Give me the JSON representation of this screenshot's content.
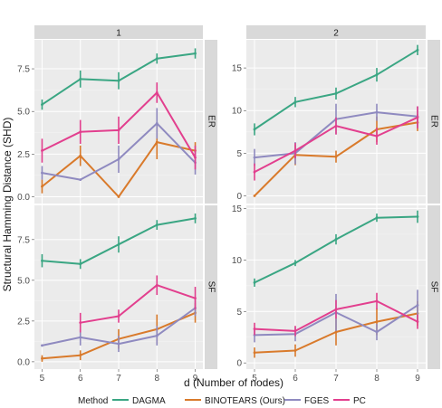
{
  "chart_data": {
    "type": "line",
    "xlabel": "d (Number of nodes)",
    "ylabel": "Structural Hamming Distance (SHD)",
    "x": [
      5,
      6,
      7,
      8,
      9
    ],
    "columns": [
      "1",
      "2"
    ],
    "rows": [
      "ER",
      "SF"
    ],
    "grid": true,
    "legend": {
      "position": "bottom",
      "title": "Method",
      "entries": [
        "DAGMA",
        "BINOTEARS (Ours)",
        "FGES",
        "PC"
      ]
    },
    "colors": {
      "DAGMA": "#3aa683",
      "BINOTEARS (Ours)": "#d97a2b",
      "FGES": "#8f8ac0",
      "PC": "#e23f8e"
    },
    "panels": [
      {
        "col": "1",
        "row": "ER",
        "ylim": [
          -0.4,
          9.2
        ],
        "yticks": [
          0.0,
          2.5,
          5.0,
          7.5
        ],
        "tick_labels": [
          "0.0",
          "2.5",
          "5.0",
          "7.5"
        ],
        "series": [
          {
            "name": "DAGMA",
            "values": [
              5.4,
              6.9,
              6.8,
              8.1,
              8.4
            ],
            "err": [
              0.3,
              0.5,
              0.5,
              0.3,
              0.3
            ]
          },
          {
            "name": "BINOTEARS (Ours)",
            "values": [
              0.6,
              2.4,
              0.0,
              3.2,
              2.7
            ],
            "err": [
              0.4,
              0.6,
              0.0,
              1.0,
              0.5
            ]
          },
          {
            "name": "FGES",
            "values": [
              1.4,
              1.0,
              2.2,
              4.3,
              2.0
            ],
            "err": [
              0.4,
              0.0,
              0.8,
              0.9,
              0.7
            ]
          },
          {
            "name": "PC",
            "values": [
              2.7,
              3.8,
              3.9,
              6.1,
              2.3
            ],
            "err": [
              0.7,
              0.7,
              0.8,
              0.6,
              0.7
            ]
          }
        ]
      },
      {
        "col": "2",
        "row": "ER",
        "ylim": [
          -0.9,
          18.3
        ],
        "yticks": [
          0,
          5,
          10,
          15
        ],
        "tick_labels": [
          "0",
          "5",
          "10",
          "15"
        ],
        "series": [
          {
            "name": "DAGMA",
            "values": [
              7.8,
              11.0,
              12.0,
              14.2,
              17.1
            ],
            "err": [
              0.7,
              0.6,
              0.7,
              0.8,
              0.6
            ]
          },
          {
            "name": "BINOTEARS (Ours)",
            "values": [
              0.0,
              4.8,
              4.6,
              7.8,
              8.6
            ],
            "err": [
              0.0,
              1.2,
              0.7,
              1.5,
              1.0
            ]
          },
          {
            "name": "FGES",
            "values": [
              4.5,
              5.0,
              9.0,
              9.8,
              9.3
            ],
            "err": [
              1.0,
              1.3,
              1.8,
              1.0,
              1.2
            ]
          },
          {
            "name": "PC",
            "values": [
              2.8,
              5.3,
              8.2,
              7.0,
              9.2
            ],
            "err": [
              1.0,
              0.9,
              1.0,
              1.0,
              1.3
            ]
          }
        ]
      },
      {
        "col": "1",
        "row": "SF",
        "ylim": [
          -0.45,
          9.6
        ],
        "yticks": [
          0.0,
          2.5,
          5.0,
          7.5
        ],
        "tick_labels": [
          "0.0",
          "2.5",
          "5.0",
          "7.5"
        ],
        "series": [
          {
            "name": "DAGMA",
            "values": [
              6.2,
              6.0,
              7.2,
              8.4,
              8.8
            ],
            "err": [
              0.4,
              0.3,
              0.5,
              0.3,
              0.3
            ]
          },
          {
            "name": "BINOTEARS (Ours)",
            "values": [
              0.2,
              0.4,
              1.4,
              2.0,
              3.0
            ],
            "err": [
              0.2,
              0.3,
              0.6,
              0.9,
              0.6
            ]
          },
          {
            "name": "FGES",
            "values": [
              1.0,
              1.5,
              1.1,
              1.6,
              3.3
            ],
            "err": [
              0.0,
              0.5,
              0.5,
              0.6,
              0.5
            ]
          },
          {
            "name": "PC",
            "values": [
              null,
              2.4,
              2.8,
              4.7,
              3.9
            ],
            "err": [
              0,
              0.6,
              0.4,
              0.6,
              0.7
            ]
          }
        ]
      },
      {
        "col": "2",
        "row": "SF",
        "ylim": [
          -0.6,
          15.3
        ],
        "yticks": [
          0,
          5,
          10,
          15
        ],
        "tick_labels": [
          "0",
          "5",
          "10",
          "15"
        ],
        "series": [
          {
            "name": "DAGMA",
            "values": [
              7.8,
              9.7,
              12.0,
              14.1,
              14.2
            ],
            "err": [
              0.4,
              0.3,
              0.5,
              0.4,
              0.6
            ]
          },
          {
            "name": "BINOTEARS (Ours)",
            "values": [
              1.0,
              1.2,
              3.0,
              4.0,
              4.8
            ],
            "err": [
              0.5,
              0.6,
              1.3,
              1.3,
              1.2
            ]
          },
          {
            "name": "FGES",
            "values": [
              2.7,
              2.8,
              4.9,
              3.0,
              5.6
            ],
            "err": [
              0.7,
              0.7,
              1.8,
              0.8,
              1.5
            ]
          },
          {
            "name": "PC",
            "values": [
              3.3,
              3.1,
              5.2,
              6.0,
              4.0
            ],
            "err": [
              0.6,
              0.5,
              0.9,
              0.8,
              0.7
            ]
          }
        ]
      }
    ]
  }
}
